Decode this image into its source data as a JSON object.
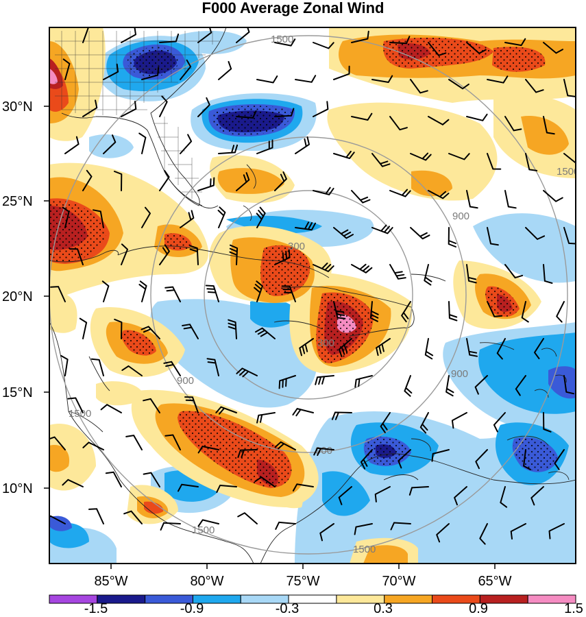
{
  "title": "F000 Average Zonal Wind",
  "lat_ticks": [
    "30°N",
    "25°N",
    "20°N",
    "15°N",
    "10°N"
  ],
  "lon_ticks": [
    "85°W",
    "80°W",
    "75°W",
    "70°W",
    "65°W"
  ],
  "colorbar": {
    "labels": [
      "-1.5",
      "-0.9",
      "-0.3",
      "0.3",
      "0.9",
      "1.5"
    ],
    "colors": [
      "#a646e0",
      "#1a1a8c",
      "#3a5ad8",
      "#1fa8ee",
      "#a8d8f6",
      "#ffffff",
      "#fde89a",
      "#f6a623",
      "#ea4a1a",
      "#b82020",
      "#f58cc2"
    ]
  },
  "range_rings": {
    "labels": [
      "300",
      "300",
      "900",
      "900",
      "900",
      "900",
      "1500",
      "1500",
      "1500",
      "1500",
      "1500"
    ]
  },
  "colors": {
    "ring": "#9a9a9a",
    "coast": "#222222",
    "barb": "#000000"
  }
}
